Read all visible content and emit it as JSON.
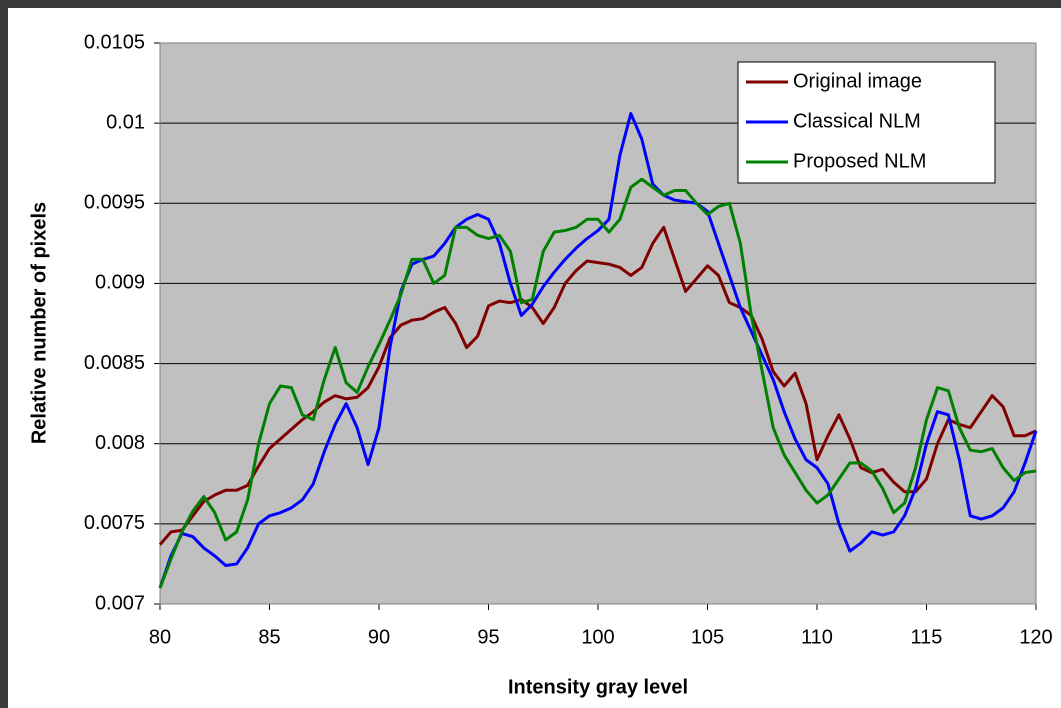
{
  "chart_data": {
    "type": "line",
    "xlabel": "Intensity gray level",
    "ylabel": "Relative number of pixels",
    "x": [
      80,
      80.5,
      81,
      81.5,
      82,
      82.5,
      83,
      83.5,
      84,
      84.5,
      85,
      85.5,
      86,
      86.5,
      87,
      87.5,
      88,
      88.5,
      89,
      89.5,
      90,
      90.5,
      91,
      91.5,
      92,
      92.5,
      93,
      93.5,
      94,
      94.5,
      95,
      95.5,
      96,
      96.5,
      97,
      97.5,
      98,
      98.5,
      99,
      99.5,
      100,
      100.5,
      101,
      101.5,
      102,
      102.5,
      103,
      103.5,
      104,
      104.5,
      105,
      105.5,
      106,
      106.5,
      107,
      107.5,
      108,
      108.5,
      109,
      109.5,
      110,
      110.5,
      111,
      111.5,
      112,
      112.5,
      113,
      113.5,
      114,
      114.5,
      115,
      115.5,
      116,
      116.5,
      117,
      117.5,
      118,
      118.5,
      119,
      119.5,
      120
    ],
    "series": [
      {
        "name": "Original image",
        "color": "#800000",
        "values": [
          0.00737,
          0.00745,
          0.00746,
          0.00755,
          0.00764,
          0.00768,
          0.00771,
          0.00771,
          0.00774,
          0.00786,
          0.00797,
          0.00803,
          0.00809,
          0.00815,
          0.0082,
          0.00826,
          0.0083,
          0.00828,
          0.00829,
          0.00835,
          0.00848,
          0.00866,
          0.00874,
          0.00877,
          0.00878,
          0.00882,
          0.00885,
          0.00875,
          0.0086,
          0.00867,
          0.00886,
          0.00889,
          0.00888,
          0.0089,
          0.00885,
          0.00875,
          0.00885,
          0.009,
          0.00908,
          0.00914,
          0.00913,
          0.00912,
          0.0091,
          0.00905,
          0.0091,
          0.00925,
          0.00935,
          0.00915,
          0.00895,
          0.00903,
          0.00911,
          0.00905,
          0.00888,
          0.00885,
          0.0088,
          0.00865,
          0.00845,
          0.00836,
          0.00844,
          0.00825,
          0.0079,
          0.00805,
          0.00818,
          0.00803,
          0.00785,
          0.00782,
          0.00784,
          0.00776,
          0.0077,
          0.0077,
          0.00778,
          0.008,
          0.00815,
          0.00812,
          0.0081,
          0.0082,
          0.0083,
          0.00823,
          0.00805,
          0.00805,
          0.00808
        ]
      },
      {
        "name": "Classical NLM",
        "color": "#0000ff",
        "values": [
          0.0071,
          0.0073,
          0.00744,
          0.00742,
          0.00735,
          0.0073,
          0.00724,
          0.00725,
          0.00735,
          0.0075,
          0.00755,
          0.00757,
          0.0076,
          0.00765,
          0.00775,
          0.00795,
          0.00812,
          0.00825,
          0.0081,
          0.00787,
          0.0081,
          0.0086,
          0.00895,
          0.00912,
          0.00915,
          0.00917,
          0.00925,
          0.00935,
          0.0094,
          0.00943,
          0.0094,
          0.00925,
          0.009,
          0.0088,
          0.00887,
          0.00898,
          0.00907,
          0.00915,
          0.00922,
          0.00928,
          0.00933,
          0.0094,
          0.0098,
          0.01006,
          0.0099,
          0.00962,
          0.00955,
          0.00952,
          0.00951,
          0.0095,
          0.00945,
          0.00925,
          0.00905,
          0.00885,
          0.0087,
          0.00855,
          0.0084,
          0.0082,
          0.00803,
          0.0079,
          0.00785,
          0.00775,
          0.0075,
          0.00733,
          0.00738,
          0.00745,
          0.00743,
          0.00745,
          0.00755,
          0.00772,
          0.008,
          0.0082,
          0.00818,
          0.0079,
          0.00755,
          0.00753,
          0.00755,
          0.0076,
          0.0077,
          0.00788,
          0.00808
        ]
      },
      {
        "name": "Proposed NLM",
        "color": "#008000",
        "values": [
          0.0071,
          0.00728,
          0.00745,
          0.00758,
          0.00767,
          0.00757,
          0.0074,
          0.00745,
          0.00765,
          0.008,
          0.00825,
          0.00836,
          0.00835,
          0.00818,
          0.00815,
          0.0084,
          0.0086,
          0.00838,
          0.00832,
          0.00848,
          0.00862,
          0.00877,
          0.00893,
          0.00915,
          0.00915,
          0.009,
          0.00905,
          0.00935,
          0.00935,
          0.0093,
          0.00928,
          0.0093,
          0.0092,
          0.00888,
          0.0089,
          0.0092,
          0.00932,
          0.00933,
          0.00935,
          0.0094,
          0.0094,
          0.00932,
          0.0094,
          0.0096,
          0.00965,
          0.0096,
          0.00955,
          0.00958,
          0.00958,
          0.0095,
          0.00943,
          0.00948,
          0.0095,
          0.00925,
          0.0088,
          0.00845,
          0.0081,
          0.00793,
          0.00782,
          0.00771,
          0.00763,
          0.00768,
          0.00778,
          0.00788,
          0.00788,
          0.00783,
          0.00772,
          0.00757,
          0.00763,
          0.00785,
          0.00815,
          0.00835,
          0.00833,
          0.0081,
          0.00796,
          0.00795,
          0.00797,
          0.00785,
          0.00777,
          0.00782,
          0.00783
        ]
      }
    ],
    "xlim": [
      80,
      120
    ],
    "xticks": [
      80,
      85,
      90,
      95,
      100,
      105,
      110,
      115,
      120
    ],
    "ylim": [
      0.007,
      0.0105
    ],
    "yticks": [
      0.007,
      0.0075,
      0.008,
      0.0085,
      0.009,
      0.0095,
      0.01,
      0.0105
    ],
    "grid": true,
    "legend": "upper right"
  }
}
